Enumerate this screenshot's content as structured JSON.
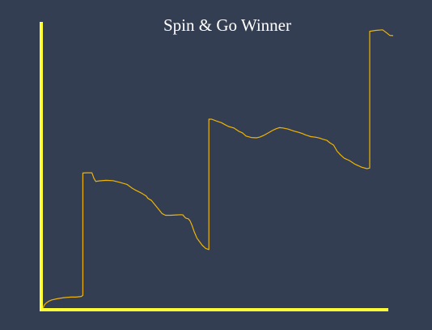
{
  "chart_data": {
    "type": "line",
    "title": "Spin & Go Winner",
    "xlabel": "",
    "ylabel": "",
    "grid": false,
    "legend": "none",
    "x_label_shown": false,
    "y_label_shown": false,
    "xlim": [
      0,
      100
    ],
    "ylim": [
      0,
      100
    ],
    "series": [
      {
        "color": "#f0b400",
        "x": [
          0,
          0.5,
          1,
          1.6,
          2.5,
          4,
          6,
          8,
          9.5,
          11,
          11.4,
          11.4,
          12.5,
          14,
          14.6,
          15.1,
          16,
          18,
          20,
          22,
          24,
          25.5,
          26.5,
          28,
          29.5,
          30,
          31,
          32,
          33,
          34,
          35,
          36.5,
          38,
          39.5,
          40,
          40.3,
          40.8,
          41.5,
          42,
          42.6,
          43.2,
          44,
          44.8,
          45.5,
          46.5,
          47.4,
          47.4,
          48.2,
          49.5,
          51,
          52,
          53,
          54.5,
          56,
          57,
          58,
          59.5,
          61,
          62,
          63.3,
          64.5,
          65.5,
          66.5,
          67.5,
          68.5,
          70,
          71.5,
          73,
          74,
          75,
          76.5,
          78,
          79,
          80,
          81,
          82,
          83,
          84,
          85,
          86,
          87.5,
          89,
          91,
          92.5,
          93.3,
          93.3,
          95,
          97,
          98.2,
          99,
          100
        ],
        "y": [
          0,
          1.2,
          1.8,
          2.3,
          2.8,
          3.2,
          3.6,
          3.8,
          3.8,
          4.0,
          4.4,
          46.4,
          46.5,
          46.5,
          44.5,
          43.5,
          43.7,
          43.9,
          43.8,
          43.2,
          42.5,
          41.2,
          40.5,
          39.6,
          38.5,
          37.7,
          37.0,
          35.5,
          34.0,
          32.5,
          31.9,
          31.9,
          32.0,
          32.1,
          32.0,
          31.5,
          30.9,
          30.7,
          30.0,
          28.3,
          26.2,
          24.0,
          22.7,
          21.6,
          20.5,
          20.1,
          64.9,
          64.9,
          64.3,
          63.7,
          63.0,
          62.4,
          61.9,
          60.7,
          60.2,
          59.1,
          58.6,
          58.5,
          58.8,
          59.5,
          60.3,
          61.0,
          61.6,
          62.0,
          61.9,
          61.5,
          60.9,
          60.4,
          60.0,
          59.5,
          58.9,
          58.7,
          58.4,
          58.0,
          57.7,
          56.7,
          56.0,
          53.9,
          52.6,
          51.5,
          50.7,
          49.5,
          48.4,
          47.9,
          48.1,
          95.1,
          95.4,
          95.6,
          94.5,
          93.7,
          93.6
        ]
      }
    ]
  }
}
